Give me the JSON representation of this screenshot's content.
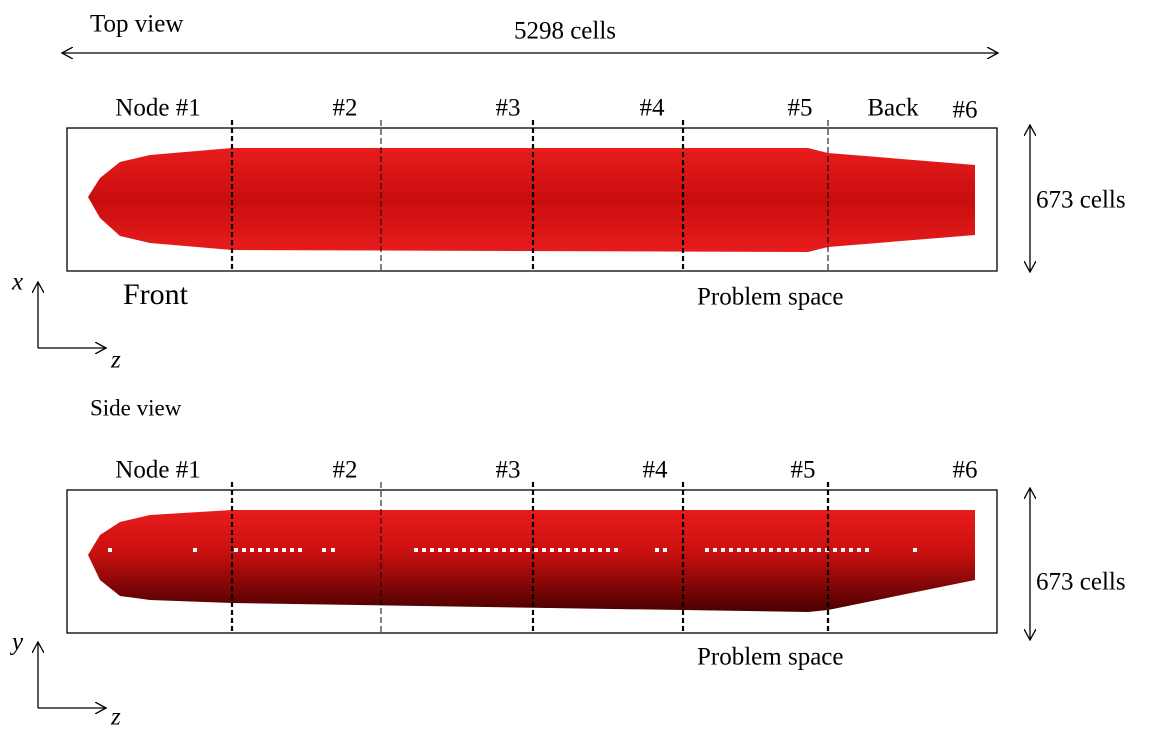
{
  "top_view": {
    "title": "Top view",
    "length_label": "5298 cells",
    "height_label": "673 cells",
    "nodes": [
      "Node #1",
      "#2",
      "#3",
      "#4",
      "#5",
      "#6"
    ],
    "back_label": "Back",
    "front_label": "Front",
    "space_label": "Problem space",
    "axis_vertical": "x",
    "axis_horizontal": "z"
  },
  "side_view": {
    "title": "Side view",
    "height_label": "673 cells",
    "nodes": [
      "Node #1",
      "#2",
      "#3",
      "#4",
      "#5",
      "#6"
    ],
    "space_label": "Problem space",
    "axis_vertical": "y",
    "axis_horizontal": "z"
  }
}
